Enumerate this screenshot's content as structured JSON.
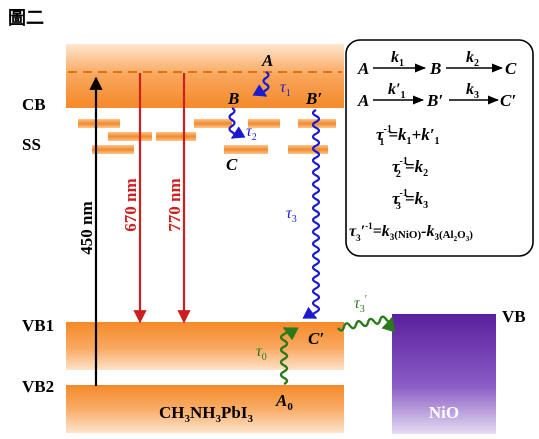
{
  "figure": {
    "title": "圖二",
    "band_labels": {
      "cb": "CB",
      "ss": "SS",
      "vb1": "VB1",
      "vb2": "VB2",
      "vb_nio": "VB"
    },
    "transitions": {
      "excitation": "450 nm",
      "emission_1": "670 nm",
      "emission_2": "770 nm"
    },
    "states": {
      "a": "A",
      "b": "B",
      "c": "C",
      "b_prime": "B′",
      "c_prime": "C′",
      "a0": "A",
      "a0_sub": "0"
    },
    "materials": {
      "perovskite": {
        "p1": "CH",
        "s1": "3",
        "p2": "NH",
        "s2": "3",
        "p3": "PbI",
        "s3": "3"
      },
      "nio": "NiO"
    },
    "lifetimes": {
      "tau1": {
        "sym": "τ",
        "sub": "1"
      },
      "tau2": {
        "sym": "τ",
        "sub": "2"
      },
      "tau3": {
        "sym": "τ",
        "sub": "3"
      },
      "tau0": {
        "sym": "τ",
        "sub": "0"
      },
      "tau3p": {
        "sym": "τ",
        "sub": "3",
        "sup": "′"
      }
    },
    "kinetics": {
      "scheme1": {
        "a": "A",
        "k1": "k",
        "k1_sub": "1",
        "b": "B",
        "k2": "k",
        "k2_sub": "2",
        "c": "C"
      },
      "scheme2": {
        "a": "A",
        "k1p": "k′",
        "k1p_sub": "1",
        "bp": "B′",
        "k3": "k",
        "k3_sub": "3",
        "cp": "C′"
      },
      "eq1": {
        "tau": "τ",
        "sub": "1",
        "sup": "-1",
        "rhs_a": "=k",
        "rhs_a_sub": "1",
        "rhs_b": "+k′",
        "rhs_b_sub": "1"
      },
      "eq2": {
        "tau": "τ",
        "sub": "2",
        "sup": "-1",
        "rhs": "=k",
        "rhs_sub": "2"
      },
      "eq3": {
        "tau": "τ",
        "sub": "3",
        "sup": "-1",
        "rhs": "=k",
        "rhs_sub": "3"
      },
      "eq4": {
        "tau": "τ",
        "sub": "3",
        "prime": "′",
        "sup": "-1",
        "t1": "=k",
        "t1_sub": "3",
        "t1_arg": "(NiO)",
        "t2": "-k",
        "t2_sub": "3",
        "t2_arg_a": "(Al",
        "t2_arg_s1": "2",
        "t2_arg_b": "O",
        "t2_arg_s2": "3",
        "t2_arg_c": ")"
      }
    },
    "colors": {
      "band_orange": "#f7963a",
      "band_light": "#fde1c3",
      "emission_red": "#cc1f1f",
      "relax_blue": "#1a1ad0",
      "relax_green": "#2a7a1a",
      "nio_purple": "#6a2aa8"
    }
  }
}
